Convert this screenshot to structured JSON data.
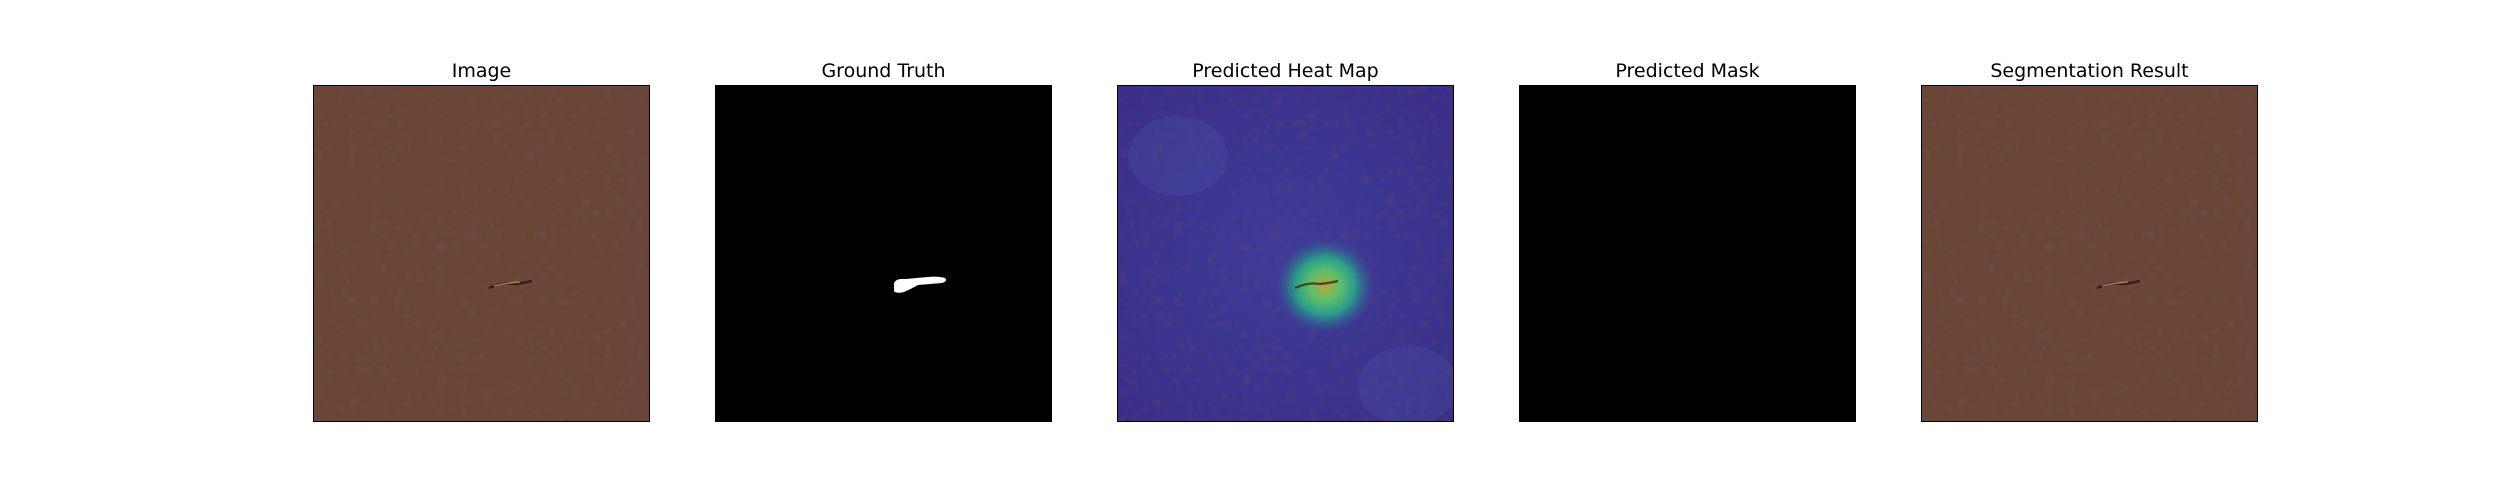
{
  "figure": {
    "panels": [
      {
        "id": "image",
        "title": "Image"
      },
      {
        "id": "ground-truth",
        "title": "Ground Truth"
      },
      {
        "id": "heatmap",
        "title": "Predicted Heat Map"
      },
      {
        "id": "mask",
        "title": "Predicted Mask"
      },
      {
        "id": "segmentation",
        "title": "Segmentation Result"
      }
    ]
  },
  "colors": {
    "leather_base": "#6a4538",
    "leather_dark": "#4e3128",
    "mask_background": "#000000",
    "mask_foreground": "#ffffff",
    "heat_low": "#3b2f8c",
    "heat_mid": "#2a9c8a",
    "heat_high": "#b8a640"
  }
}
